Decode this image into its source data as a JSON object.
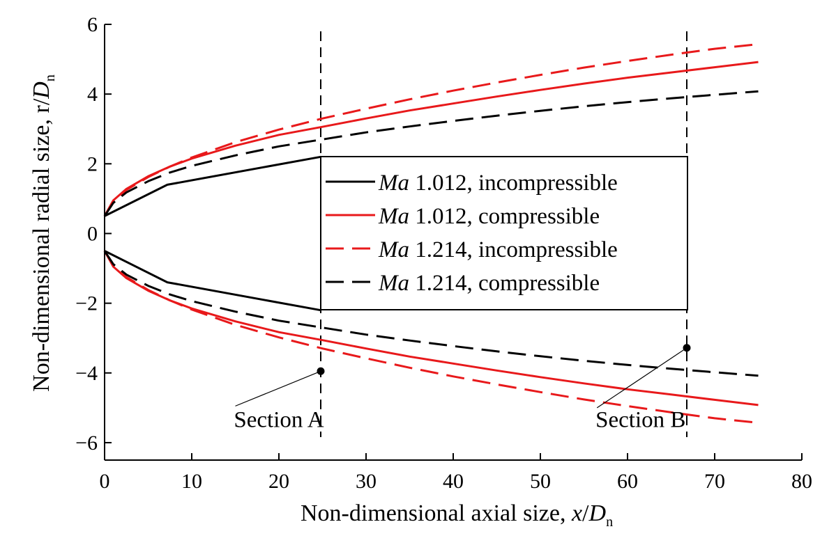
{
  "chart_data": {
    "type": "line",
    "xlabel": {
      "prefix": "Non-dimensional axial size, ",
      "var": "x",
      "slash": "/",
      "D": "D",
      "sub": "n"
    },
    "ylabel": {
      "prefix": "Non-dimensional radial size, r/",
      "D": "D",
      "sub": "n"
    },
    "xlim": [
      0,
      80
    ],
    "ylim": [
      -6.5,
      6
    ],
    "xticks": [
      0,
      10,
      20,
      30,
      40,
      50,
      60,
      70,
      80
    ],
    "yticks": [
      -6,
      -4,
      -2,
      0,
      2,
      4,
      6
    ],
    "ytick_labels": [
      "−6",
      "−4",
      "−2",
      "0",
      "2",
      "4",
      "6"
    ],
    "grid": false,
    "legend_position": "center-right",
    "series": [
      {
        "name_italic": "Ma",
        "name_rest": " 1.012, incompressible",
        "color": "#000000",
        "dash": "solid",
        "upper": [
          [
            0,
            0.5
          ],
          [
            7.2,
            1.4
          ],
          [
            24.8,
            2.2
          ]
        ],
        "lower": [
          [
            0,
            -0.5
          ],
          [
            7.2,
            -1.4
          ],
          [
            24.8,
            -2.2
          ]
        ]
      },
      {
        "name_italic": "Ma",
        "name_rest": " 1.012, compressible",
        "color": "#e8191b",
        "dash": "solid",
        "upper": [
          [
            0,
            0.5
          ],
          [
            1,
            0.95
          ],
          [
            2.5,
            1.28
          ],
          [
            5,
            1.64
          ],
          [
            7.5,
            1.92
          ],
          [
            10,
            2.15
          ],
          [
            15,
            2.52
          ],
          [
            20,
            2.83
          ],
          [
            25,
            3.06
          ],
          [
            30,
            3.3
          ],
          [
            35,
            3.53
          ],
          [
            40,
            3.73
          ],
          [
            45,
            3.93
          ],
          [
            50,
            4.12
          ],
          [
            55,
            4.3
          ],
          [
            60,
            4.47
          ],
          [
            65,
            4.62
          ],
          [
            70,
            4.77
          ],
          [
            75,
            4.92
          ]
        ],
        "lower": [
          [
            0,
            -0.5
          ],
          [
            1,
            -0.95
          ],
          [
            2.5,
            -1.28
          ],
          [
            5,
            -1.64
          ],
          [
            7.5,
            -1.92
          ],
          [
            10,
            -2.15
          ],
          [
            15,
            -2.52
          ],
          [
            20,
            -2.83
          ],
          [
            25,
            -3.06
          ],
          [
            30,
            -3.3
          ],
          [
            35,
            -3.53
          ],
          [
            40,
            -3.73
          ],
          [
            45,
            -3.93
          ],
          [
            50,
            -4.12
          ],
          [
            55,
            -4.3
          ],
          [
            60,
            -4.47
          ],
          [
            65,
            -4.62
          ],
          [
            70,
            -4.77
          ],
          [
            75,
            -4.92
          ]
        ]
      },
      {
        "name_italic": "Ma",
        "name_rest": " 1.214, incompressible",
        "color": "#e8191b",
        "dash": "dashed",
        "upper": [
          [
            0,
            0.5
          ],
          [
            1,
            0.92
          ],
          [
            2.5,
            1.25
          ],
          [
            5,
            1.62
          ],
          [
            7.5,
            1.92
          ],
          [
            10,
            2.18
          ],
          [
            15,
            2.62
          ],
          [
            20,
            2.98
          ],
          [
            25,
            3.3
          ],
          [
            30,
            3.58
          ],
          [
            35,
            3.85
          ],
          [
            40,
            4.1
          ],
          [
            45,
            4.33
          ],
          [
            50,
            4.55
          ],
          [
            55,
            4.76
          ],
          [
            60,
            4.95
          ],
          [
            65,
            5.13
          ],
          [
            70,
            5.3
          ],
          [
            75,
            5.43
          ]
        ],
        "lower": [
          [
            0,
            -0.5
          ],
          [
            1,
            -0.92
          ],
          [
            2.5,
            -1.25
          ],
          [
            5,
            -1.62
          ],
          [
            7.5,
            -1.92
          ],
          [
            10,
            -2.18
          ],
          [
            15,
            -2.62
          ],
          [
            20,
            -2.98
          ],
          [
            25,
            -3.3
          ],
          [
            30,
            -3.58
          ],
          [
            35,
            -3.85
          ],
          [
            40,
            -4.1
          ],
          [
            45,
            -4.33
          ],
          [
            50,
            -4.55
          ],
          [
            55,
            -4.76
          ],
          [
            60,
            -4.95
          ],
          [
            65,
            -5.13
          ],
          [
            70,
            -5.3
          ],
          [
            75,
            -5.43
          ]
        ]
      },
      {
        "name_italic": "Ma",
        "name_rest": " 1.214, compressible",
        "color": "#000000",
        "dash": "dashed",
        "upper": [
          [
            0,
            0.5
          ],
          [
            1,
            0.88
          ],
          [
            2.5,
            1.18
          ],
          [
            5,
            1.5
          ],
          [
            7.5,
            1.75
          ],
          [
            10,
            1.94
          ],
          [
            15,
            2.24
          ],
          [
            20,
            2.5
          ],
          [
            25,
            2.7
          ],
          [
            30,
            2.9
          ],
          [
            35,
            3.07
          ],
          [
            40,
            3.23
          ],
          [
            45,
            3.38
          ],
          [
            50,
            3.52
          ],
          [
            55,
            3.65
          ],
          [
            60,
            3.77
          ],
          [
            65,
            3.88
          ],
          [
            70,
            3.98
          ],
          [
            75,
            4.08
          ]
        ],
        "lower": [
          [
            0,
            -0.5
          ],
          [
            1,
            -0.88
          ],
          [
            2.5,
            -1.18
          ],
          [
            5,
            -1.5
          ],
          [
            7.5,
            -1.75
          ],
          [
            10,
            -1.94
          ],
          [
            15,
            -2.24
          ],
          [
            20,
            -2.5
          ],
          [
            25,
            -2.7
          ],
          [
            30,
            -2.9
          ],
          [
            35,
            -3.07
          ],
          [
            40,
            -3.23
          ],
          [
            45,
            -3.38
          ],
          [
            50,
            -3.52
          ],
          [
            55,
            -3.65
          ],
          [
            60,
            -3.77
          ],
          [
            65,
            -3.88
          ],
          [
            70,
            -3.98
          ],
          [
            75,
            -4.08
          ]
        ]
      }
    ],
    "sections": [
      {
        "label": "Section A",
        "x": 24.8,
        "marker": [
          24.8,
          -3.95
        ],
        "label_at": [
          20,
          -5.55
        ],
        "leader_from": [
          15,
          -4.95
        ]
      },
      {
        "label": "Section B",
        "x": 66.8,
        "marker": [
          66.8,
          -3.28
        ],
        "label_at": [
          61.5,
          -5.55
        ],
        "leader_from": [
          56.5,
          -5.0
        ]
      }
    ]
  }
}
